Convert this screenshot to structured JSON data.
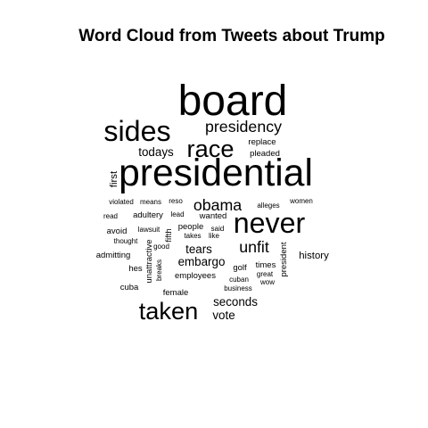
{
  "chart_data": {
    "type": "wordcloud",
    "title": "Word Cloud from Tweets about Trump",
    "words": [
      {
        "text": "board",
        "weight": 10
      },
      {
        "text": "presidential",
        "weight": 9
      },
      {
        "text": "sides",
        "weight": 7
      },
      {
        "text": "never",
        "weight": 7
      },
      {
        "text": "race",
        "weight": 6
      },
      {
        "text": "taken",
        "weight": 6
      },
      {
        "text": "presidency",
        "weight": 4
      },
      {
        "text": "obama",
        "weight": 4
      },
      {
        "text": "unfit",
        "weight": 4
      },
      {
        "text": "tears",
        "weight": 3
      },
      {
        "text": "seconds",
        "weight": 3
      },
      {
        "text": "todays",
        "weight": 3
      },
      {
        "text": "embargo",
        "weight": 3
      },
      {
        "text": "vote",
        "weight": 3
      },
      {
        "text": "history",
        "weight": 2.5
      },
      {
        "text": "first",
        "weight": 2.5
      },
      {
        "text": "replace",
        "weight": 2
      },
      {
        "text": "pleaded",
        "weight": 2
      },
      {
        "text": "adultery",
        "weight": 2
      },
      {
        "text": "wanted",
        "weight": 2
      },
      {
        "text": "admitting",
        "weight": 2
      },
      {
        "text": "cuba",
        "weight": 2
      },
      {
        "text": "female",
        "weight": 2
      },
      {
        "text": "employees",
        "weight": 2
      },
      {
        "text": "golf",
        "weight": 2
      },
      {
        "text": "times",
        "weight": 2
      },
      {
        "text": "president",
        "weight": 2
      },
      {
        "text": "avoid",
        "weight": 2
      },
      {
        "text": "people",
        "weight": 2
      },
      {
        "text": "hes",
        "weight": 2
      },
      {
        "text": "fifth",
        "weight": 2
      },
      {
        "text": "unattractive",
        "weight": 2
      },
      {
        "text": "violated",
        "weight": 1.5
      },
      {
        "text": "means",
        "weight": 1.5
      },
      {
        "text": "reso",
        "weight": 1.5
      },
      {
        "text": "alleges",
        "weight": 1.5
      },
      {
        "text": "women",
        "weight": 1.5
      },
      {
        "text": "read",
        "weight": 1.5
      },
      {
        "text": "lead",
        "weight": 1.5
      },
      {
        "text": "lawsuit",
        "weight": 1.5
      },
      {
        "text": "said",
        "weight": 1.5
      },
      {
        "text": "takes",
        "weight": 1.5
      },
      {
        "text": "like",
        "weight": 1.5
      },
      {
        "text": "thought",
        "weight": 1.5
      },
      {
        "text": "good",
        "weight": 1.5
      },
      {
        "text": "breaks",
        "weight": 1.5
      },
      {
        "text": "great",
        "weight": 1.5
      },
      {
        "text": "wow",
        "weight": 1.5
      },
      {
        "text": "cuban",
        "weight": 1.5
      },
      {
        "text": "business",
        "weight": 1.5
      }
    ]
  }
}
